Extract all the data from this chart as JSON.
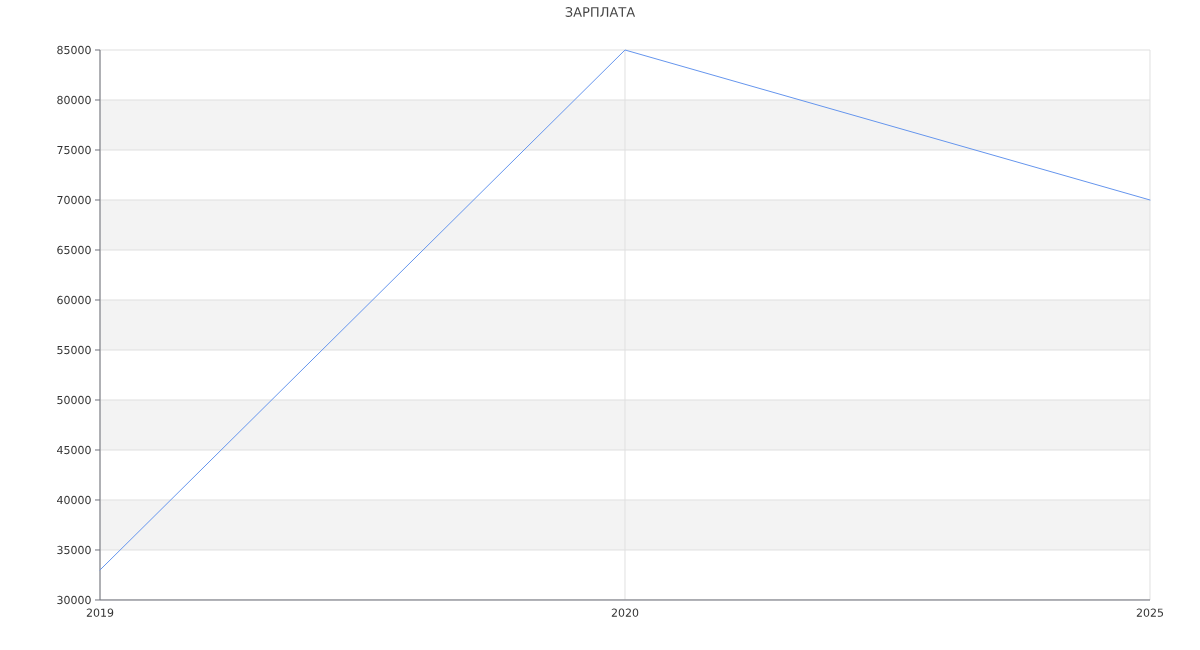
{
  "chart_data": {
    "type": "line",
    "title": "ЗАРПЛАТА",
    "categories": [
      "2019",
      "2020",
      "2025"
    ],
    "series": [
      {
        "color": "#6495ed",
        "values": [
          33000,
          85000,
          70000
        ]
      }
    ],
    "ylim": [
      30000,
      85000
    ],
    "yticks": [
      30000,
      35000,
      40000,
      45000,
      50000,
      55000,
      60000,
      65000,
      70000,
      75000,
      80000,
      85000
    ],
    "grid": true,
    "marker": "none",
    "line_style": "solid"
  }
}
